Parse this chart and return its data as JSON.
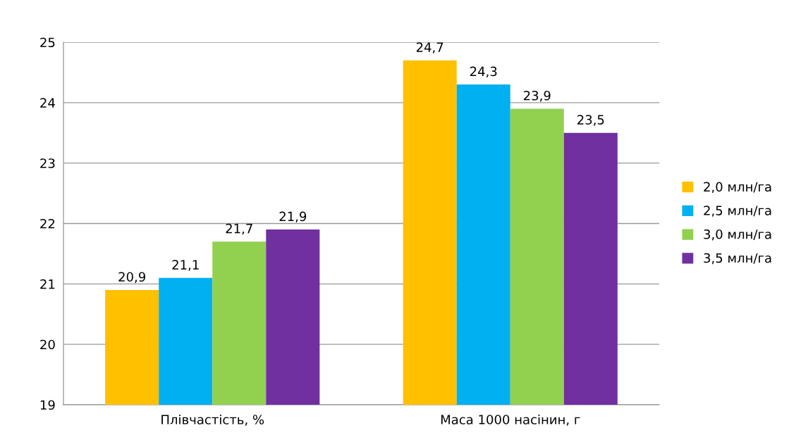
{
  "chart_data": {
    "type": "bar",
    "categories": [
      "Плівчастість, %",
      "Маса 1000 насінин, г"
    ],
    "series": [
      {
        "name": "2,0 млн/га",
        "color": "#ffc000",
        "values": [
          20.9,
          24.7
        ],
        "value_labels": [
          "20,9",
          "24,7"
        ]
      },
      {
        "name": "2,5 млн/га",
        "color": "#00b0f0",
        "values": [
          21.1,
          24.3
        ],
        "value_labels": [
          "21,1",
          "24,3"
        ]
      },
      {
        "name": "3,0 млн/га",
        "color": "#92d050",
        "values": [
          21.7,
          23.9
        ],
        "value_labels": [
          "21,7",
          "23,9"
        ]
      },
      {
        "name": "3,5 млн/га",
        "color": "#7030a0",
        "values": [
          21.9,
          23.5
        ],
        "value_labels": [
          "21,9",
          "23,5"
        ]
      }
    ],
    "ylim": [
      19,
      25
    ],
    "yticks": [
      19,
      20,
      21,
      22,
      23,
      24,
      25
    ],
    "grid": "y",
    "legend": "right"
  }
}
